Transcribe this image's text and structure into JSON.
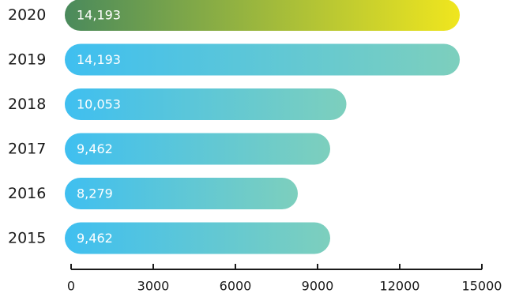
{
  "chart_data": {
    "type": "bar",
    "orientation": "horizontal",
    "categories": [
      "2020",
      "2019",
      "2018",
      "2017",
      "2016",
      "2015"
    ],
    "values": [
      14193,
      14193,
      10053,
      9462,
      8279,
      9462
    ],
    "value_labels": [
      "14,193",
      "14,193",
      "10,053",
      "9,462",
      "8,279",
      "9,462"
    ],
    "highlight_category": "2020",
    "xlim": [
      0,
      15000
    ],
    "xticks": [
      0,
      3000,
      6000,
      9000,
      12000,
      15000
    ],
    "xtick_labels": [
      "0",
      "3000",
      "6000",
      "9000",
      "12000",
      "15000"
    ],
    "grid": false,
    "title": "",
    "xlabel": "",
    "ylabel": ""
  },
  "colors": {
    "highlight_start": "#4a8a5c",
    "highlight_end": "#f0e61e",
    "bar_start": "#3fbff0",
    "bar_end": "#7dcfbd",
    "axis": "#1a1a1a"
  }
}
